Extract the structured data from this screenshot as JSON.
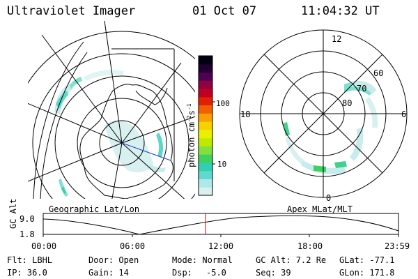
{
  "header": {
    "instrument": "Ultraviolet Imager",
    "date": "01 Oct 07",
    "time": "11:04:32 UT"
  },
  "left_panel": {
    "label": "Geographic Lat/Lon",
    "palette": "light-cyan-green"
  },
  "right_panel": {
    "label": "Apex MLat/MLT",
    "mlt_labels": [
      "12",
      "18",
      "6",
      "0"
    ],
    "lat_labels": [
      "60",
      "70",
      "80"
    ]
  },
  "colorbar": {
    "label": "photon cm",
    "label_sup1": "-2",
    "label_mid": "s",
    "label_sup2": "-1",
    "ticks": [
      "100",
      "10"
    ],
    "colors": [
      "#d8f0f0",
      "#b0e8e8",
      "#60d8d0",
      "#30d0b0",
      "#40d060",
      "#80e040",
      "#c0e800",
      "#e8f000",
      "#f8d000",
      "#f8a000",
      "#f06000",
      "#e02000",
      "#c00020",
      "#900040",
      "#500050",
      "#200030",
      "#000010"
    ]
  },
  "altitude_plot": {
    "ylabel": "GC Alt",
    "yticks": [
      "9.0",
      "1.8"
    ],
    "xticks": [
      "00:00",
      "06:00",
      "12:00",
      "18:00",
      "23:59"
    ],
    "current_time_marker_color": "#d00000"
  },
  "info": {
    "flt": "Flt: LBHL",
    "door": "Door: Open",
    "mode": "Mode: Normal",
    "gc_alt": "GC Alt: 7.2 Re",
    "glat": "GLat: -77.1",
    "ip": "IP: 36.0",
    "gain": "Gain: 14",
    "dsp_label": "Dsp:",
    "dsp_value": "-5.0",
    "seq": "Seq: 39",
    "glon": "GLon: 171.8"
  }
}
